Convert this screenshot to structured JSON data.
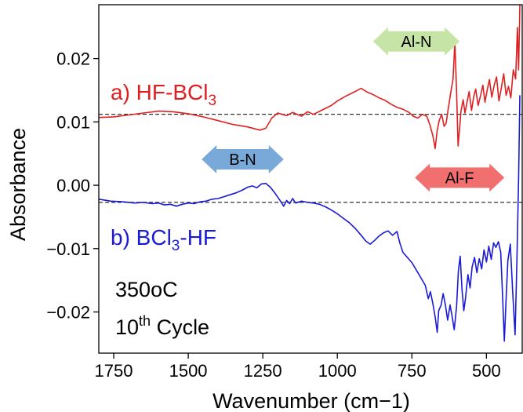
{
  "chart_data": {
    "type": "line",
    "xlabel": "Wavenumber (cm−1)",
    "ylabel": "Absorbance",
    "xlim": [
      1800,
      380
    ],
    "ylim": [
      -0.0265,
      0.0285
    ],
    "x_inverted": true,
    "x_ticks": [
      1750,
      1500,
      1250,
      1000,
      750,
      500
    ],
    "x_tick_labels": [
      "1750",
      "1500",
      "1250",
      "1000",
      "750",
      "500"
    ],
    "y_ticks": [
      0.02,
      0.01,
      0.0,
      -0.01,
      -0.02
    ],
    "y_tick_labels": [
      "0.02",
      "0.01",
      "0.00",
      "−0.01",
      "−0.02"
    ],
    "grid": false,
    "baselines": [
      {
        "series": "a",
        "y": 0.0112,
        "style": "dashed",
        "color": "#333333"
      },
      {
        "series": "b",
        "y": -0.0027,
        "style": "dashed",
        "color": "#333333"
      }
    ],
    "series": [
      {
        "id": "a",
        "label_prefix": "a) HF-BCl",
        "label_sub": "3",
        "label_suffix": "",
        "color": "#e02020",
        "points": [
          [
            1800,
            0.0107
          ],
          [
            1750,
            0.0108
          ],
          [
            1700,
            0.0111
          ],
          [
            1650,
            0.0114
          ],
          [
            1600,
            0.0117
          ],
          [
            1550,
            0.0116
          ],
          [
            1500,
            0.0113
          ],
          [
            1450,
            0.0108
          ],
          [
            1400,
            0.0102
          ],
          [
            1350,
            0.0096
          ],
          [
            1300,
            0.0092
          ],
          [
            1260,
            0.0087
          ],
          [
            1240,
            0.009
          ],
          [
            1220,
            0.0106
          ],
          [
            1200,
            0.0114
          ],
          [
            1170,
            0.011
          ],
          [
            1150,
            0.0115
          ],
          [
            1120,
            0.0109
          ],
          [
            1100,
            0.0116
          ],
          [
            1080,
            0.0112
          ],
          [
            1050,
            0.0119
          ],
          [
            1020,
            0.0126
          ],
          [
            1000,
            0.0133
          ],
          [
            970,
            0.0141
          ],
          [
            940,
            0.0148
          ],
          [
            920,
            0.0153
          ],
          [
            900,
            0.0147
          ],
          [
            880,
            0.0143
          ],
          [
            860,
            0.0138
          ],
          [
            840,
            0.0134
          ],
          [
            820,
            0.0128
          ],
          [
            800,
            0.0123
          ],
          [
            780,
            0.012
          ],
          [
            760,
            0.0115
          ],
          [
            745,
            0.0109
          ],
          [
            730,
            0.0106
          ],
          [
            715,
            0.0112
          ],
          [
            700,
            0.0109
          ],
          [
            690,
            0.0096
          ],
          [
            680,
            0.0079
          ],
          [
            672,
            0.0058
          ],
          [
            665,
            0.0087
          ],
          [
            658,
            0.0103
          ],
          [
            650,
            0.0112
          ],
          [
            642,
            0.0093
          ],
          [
            635,
            0.0098
          ],
          [
            628,
            0.0121
          ],
          [
            620,
            0.0145
          ],
          [
            612,
            0.0168
          ],
          [
            606,
            0.0226
          ],
          [
            600,
            0.0148
          ],
          [
            595,
            0.0062
          ],
          [
            590,
            0.0089
          ],
          [
            585,
            0.0118
          ],
          [
            578,
            0.0135
          ],
          [
            572,
            0.0114
          ],
          [
            565,
            0.0131
          ],
          [
            558,
            0.0148
          ],
          [
            550,
            0.0118
          ],
          [
            543,
            0.0139
          ],
          [
            536,
            0.0152
          ],
          [
            528,
            0.0126
          ],
          [
            520,
            0.0141
          ],
          [
            512,
            0.0158
          ],
          [
            505,
            0.0131
          ],
          [
            498,
            0.0149
          ],
          [
            490,
            0.0167
          ],
          [
            482,
            0.0139
          ],
          [
            474,
            0.0158
          ],
          [
            466,
            0.0171
          ],
          [
            458,
            0.0133
          ],
          [
            450,
            0.0154
          ],
          [
            442,
            0.0176
          ],
          [
            434,
            0.0142
          ],
          [
            426,
            0.0156
          ],
          [
            418,
            0.0138
          ],
          [
            410,
            0.0182
          ],
          [
            402,
            0.0168
          ],
          [
            396,
            0.0249
          ],
          [
            392,
            0.0182
          ],
          [
            388,
            0.0285
          ]
        ]
      },
      {
        "id": "b",
        "label_prefix": "b) BCl",
        "label_sub": "3",
        "label_suffix": "-HF",
        "color": "#1a1ad6",
        "points": [
          [
            1800,
            -0.0022
          ],
          [
            1760,
            -0.0025
          ],
          [
            1720,
            -0.0026
          ],
          [
            1680,
            -0.0028
          ],
          [
            1650,
            -0.0027
          ],
          [
            1620,
            -0.0029
          ],
          [
            1600,
            -0.0028
          ],
          [
            1580,
            -0.0031
          ],
          [
            1560,
            -0.003
          ],
          [
            1540,
            -0.0033
          ],
          [
            1520,
            -0.003
          ],
          [
            1500,
            -0.0028
          ],
          [
            1480,
            -0.0029
          ],
          [
            1460,
            -0.0026
          ],
          [
            1440,
            -0.0025
          ],
          [
            1420,
            -0.0022
          ],
          [
            1400,
            -0.0021
          ],
          [
            1380,
            -0.0018
          ],
          [
            1360,
            -0.0015
          ],
          [
            1340,
            -0.0012
          ],
          [
            1320,
            -0.0008
          ],
          [
            1300,
            -0.0003
          ],
          [
            1285,
            -0.0001
          ],
          [
            1270,
            -0.0004
          ],
          [
            1255,
            0.0002
          ],
          [
            1240,
            0.0003
          ],
          [
            1225,
            -0.0003
          ],
          [
            1210,
            -0.0012
          ],
          [
            1195,
            -0.0022
          ],
          [
            1180,
            -0.0033
          ],
          [
            1170,
            -0.0024
          ],
          [
            1160,
            -0.0029
          ],
          [
            1150,
            -0.0021
          ],
          [
            1140,
            -0.0028
          ],
          [
            1120,
            -0.0025
          ],
          [
            1100,
            -0.0027
          ],
          [
            1080,
            -0.0028
          ],
          [
            1060,
            -0.003
          ],
          [
            1040,
            -0.0034
          ],
          [
            1020,
            -0.0039
          ],
          [
            1000,
            -0.0045
          ],
          [
            980,
            -0.0052
          ],
          [
            960,
            -0.0059
          ],
          [
            940,
            -0.0068
          ],
          [
            920,
            -0.0079
          ],
          [
            905,
            -0.0088
          ],
          [
            890,
            -0.0093
          ],
          [
            875,
            -0.0087
          ],
          [
            860,
            -0.008
          ],
          [
            845,
            -0.0075
          ],
          [
            830,
            -0.0072
          ],
          [
            815,
            -0.0079
          ],
          [
            800,
            -0.0073
          ],
          [
            790,
            -0.0092
          ],
          [
            780,
            -0.0106
          ],
          [
            765,
            -0.0114
          ],
          [
            750,
            -0.0122
          ],
          [
            735,
            -0.0134
          ],
          [
            720,
            -0.0146
          ],
          [
            705,
            -0.0158
          ],
          [
            695,
            -0.0179
          ],
          [
            688,
            -0.0168
          ],
          [
            680,
            -0.0186
          ],
          [
            672,
            -0.0208
          ],
          [
            665,
            -0.0232
          ],
          [
            660,
            -0.0198
          ],
          [
            652,
            -0.0189
          ],
          [
            645,
            -0.0171
          ],
          [
            638,
            -0.0188
          ],
          [
            630,
            -0.0213
          ],
          [
            622,
            -0.0189
          ],
          [
            615,
            -0.0207
          ],
          [
            608,
            -0.0228
          ],
          [
            600,
            -0.0191
          ],
          [
            594,
            -0.0135
          ],
          [
            588,
            -0.0112
          ],
          [
            582,
            -0.0164
          ],
          [
            576,
            -0.0198
          ],
          [
            570,
            -0.0178
          ],
          [
            562,
            -0.0141
          ],
          [
            555,
            -0.0162
          ],
          [
            548,
            -0.0129
          ],
          [
            540,
            -0.0114
          ],
          [
            532,
            -0.0138
          ],
          [
            524,
            -0.0116
          ],
          [
            516,
            -0.0132
          ],
          [
            508,
            -0.0102
          ],
          [
            500,
            -0.0121
          ],
          [
            492,
            -0.0096
          ],
          [
            484,
            -0.0117
          ],
          [
            476,
            -0.0091
          ],
          [
            468,
            -0.0098
          ],
          [
            460,
            -0.0089
          ],
          [
            452,
            -0.0106
          ],
          [
            446,
            -0.0173
          ],
          [
            440,
            -0.0246
          ],
          [
            434,
            -0.0178
          ],
          [
            428,
            -0.0119
          ],
          [
            420,
            -0.0093
          ],
          [
            412,
            -0.0167
          ],
          [
            404,
            -0.0236
          ],
          [
            398,
            -0.0121
          ],
          [
            392,
            0.0011
          ],
          [
            388,
            0.0142
          ]
        ]
      }
    ],
    "annotations": [
      {
        "id": "al-n",
        "label": "Al-N",
        "x_from": 880,
        "x_to": 590,
        "y": 0.0227,
        "fill": "#c6e4a6",
        "text_color": "#000000"
      },
      {
        "id": "b-n",
        "label": "B-N",
        "x_from": 1455,
        "x_to": 1180,
        "y": 0.0041,
        "fill": "#79a9d8",
        "text_color": "#000000"
      },
      {
        "id": "al-f",
        "label": "Al-F",
        "x_from": 740,
        "x_to": 440,
        "y": 0.0012,
        "fill": "#f26f6f",
        "text_color": "#000000"
      }
    ],
    "conditions": {
      "temperature": "350",
      "temperature_unit": "oC",
      "cycle_number": "10",
      "cycle_suffix": "th",
      "cycle_word": " Cycle"
    }
  }
}
